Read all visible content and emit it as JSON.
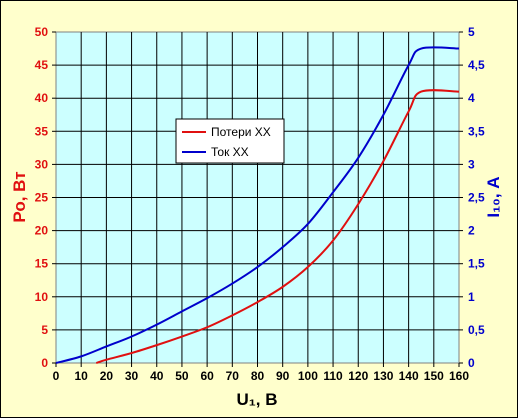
{
  "chart_data": {
    "type": "line",
    "x_label": "U₁, В",
    "y_left_label": "Ро, Вт",
    "y_right_label": "I₁₀, А",
    "x_ticks": [
      "0",
      "10",
      "20",
      "30",
      "40",
      "50",
      "60",
      "70",
      "80",
      "90",
      "100",
      "110",
      "120",
      "130",
      "140",
      "150",
      "160"
    ],
    "y_left_ticks": [
      "0",
      "5",
      "10",
      "15",
      "20",
      "25",
      "30",
      "35",
      "40",
      "45",
      "50"
    ],
    "y_right_ticks": [
      "0",
      "0,5",
      "1",
      "1,5",
      "2",
      "2,5",
      "3",
      "3,5",
      "4",
      "4,5",
      "5"
    ],
    "x_range": [
      0,
      160
    ],
    "y_left_range": [
      0,
      50
    ],
    "y_right_range": [
      0,
      5
    ],
    "grid": true,
    "legend_position": "upper-left",
    "series": [
      {
        "name": "Потери ХХ",
        "axis": "left",
        "color": "#e01010",
        "points": [
          [
            16,
            0
          ],
          [
            20,
            0.5
          ],
          [
            30,
            1.5
          ],
          [
            40,
            2.7
          ],
          [
            50,
            4.0
          ],
          [
            60,
            5.4
          ],
          [
            70,
            7.2
          ],
          [
            80,
            9.2
          ],
          [
            90,
            11.5
          ],
          [
            100,
            14.5
          ],
          [
            110,
            18.5
          ],
          [
            120,
            24
          ],
          [
            130,
            30.5
          ],
          [
            140,
            38
          ],
          [
            145,
            41
          ],
          [
            160,
            41
          ]
        ]
      },
      {
        "name": "Ток ХХ",
        "axis": "right",
        "color": "#0000cc",
        "points": [
          [
            0,
            0
          ],
          [
            10,
            0.1
          ],
          [
            20,
            0.25
          ],
          [
            30,
            0.4
          ],
          [
            40,
            0.58
          ],
          [
            50,
            0.78
          ],
          [
            60,
            0.98
          ],
          [
            70,
            1.2
          ],
          [
            80,
            1.45
          ],
          [
            90,
            1.75
          ],
          [
            100,
            2.1
          ],
          [
            110,
            2.58
          ],
          [
            120,
            3.1
          ],
          [
            130,
            3.75
          ],
          [
            140,
            4.5
          ],
          [
            145,
            4.75
          ],
          [
            160,
            4.75
          ]
        ]
      }
    ]
  }
}
